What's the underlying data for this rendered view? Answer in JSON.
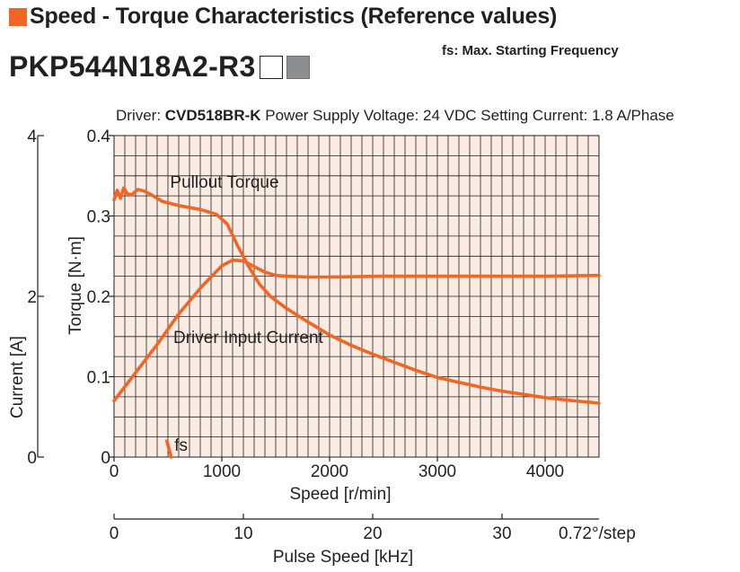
{
  "header": {
    "title": "Speed - Torque Characteristics (Reference values)",
    "note": "fs: Max. Starting Frequency",
    "model": "PKP544N18A2-R3"
  },
  "conditions": {
    "driver_label": "Driver: ",
    "driver": "CVD518BR-K",
    "rest": " Power Supply Voltage: 24 VDC  Setting Current: 1.8 A/Phase"
  },
  "colors": {
    "accent": "#f26522",
    "grid_bg": "#fbece3",
    "grid_line": "#231f20",
    "model_box_fill": "#8d8e8f"
  },
  "chart_data": {
    "type": "line",
    "xlabel": "Speed [r/min]",
    "xlim": [
      0,
      4500
    ],
    "xticks": [
      0,
      1000,
      2000,
      3000,
      4000
    ],
    "x2label": "Pulse Speed [kHz]",
    "x2lim": [
      0,
      37.5
    ],
    "x2ticks": [
      0,
      10,
      20,
      30
    ],
    "x2_suffix": "0.72°/step",
    "ylabel": "Torque [N·m]",
    "ylim": [
      0,
      0.4
    ],
    "yticks": [
      "0",
      "0.1",
      "0.2",
      "0.3",
      "0.4"
    ],
    "y2label": "Current [A]",
    "y2lim": [
      0,
      4
    ],
    "y2ticks": [
      "0",
      "2",
      "4"
    ],
    "grid": true,
    "series": [
      {
        "name": "Pullout Torque",
        "axis": "torque",
        "x": [
          0,
          30,
          60,
          90,
          120,
          160,
          220,
          280,
          350,
          450,
          600,
          800,
          950,
          1050,
          1150,
          1250,
          1350,
          1450,
          1600,
          1800,
          2000,
          2200,
          2400,
          2600,
          2800,
          3000,
          3200,
          3400,
          3600,
          3800,
          4000,
          4200,
          4500
        ],
        "y": [
          0.32,
          0.332,
          0.322,
          0.335,
          0.328,
          0.326,
          0.333,
          0.331,
          0.326,
          0.318,
          0.313,
          0.308,
          0.302,
          0.29,
          0.262,
          0.237,
          0.215,
          0.2,
          0.185,
          0.168,
          0.152,
          0.139,
          0.128,
          0.118,
          0.108,
          0.099,
          0.093,
          0.087,
          0.082,
          0.078,
          0.074,
          0.071,
          0.067
        ]
      },
      {
        "name": "Driver Input Current",
        "axis": "current",
        "x": [
          0,
          200,
          400,
          600,
          800,
          1000,
          1100,
          1200,
          1300,
          1400,
          1500,
          1600,
          1800,
          2000,
          2500,
          3000,
          3500,
          4000,
          4500
        ],
        "y": [
          0.7,
          1.05,
          1.4,
          1.78,
          2.1,
          2.38,
          2.45,
          2.44,
          2.37,
          2.3,
          2.26,
          2.25,
          2.24,
          2.24,
          2.25,
          2.25,
          2.25,
          2.25,
          2.26
        ]
      }
    ],
    "annotations": [
      {
        "text": "Pullout Torque",
        "x": 520,
        "y": 0.335
      },
      {
        "text": "Driver Input Current",
        "x": 550,
        "y": 0.142
      },
      {
        "text": "fs",
        "x": 560,
        "y": 0.008
      }
    ],
    "fs": {
      "label": "fs",
      "x": [
        490,
        530
      ],
      "y": [
        0.02,
        0
      ]
    }
  }
}
